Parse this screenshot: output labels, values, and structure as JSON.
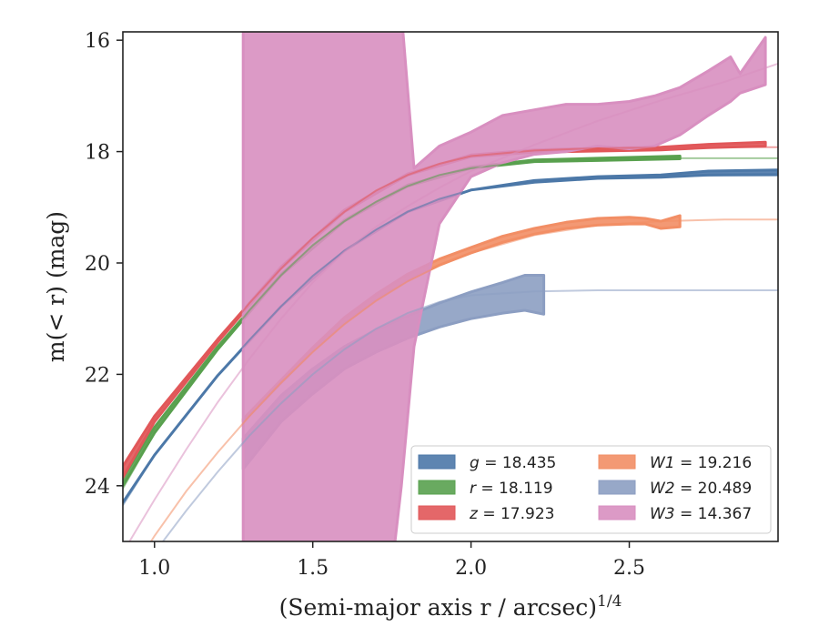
{
  "chart_data": {
    "type": "line",
    "xlabel": "(Semi-major axis r / arcsec)",
    "xlabel_superscript": "1/4",
    "ylabel": "m(< r) (mag)",
    "xlim": [
      0.9,
      2.97
    ],
    "ylim": [
      25.0,
      15.85
    ],
    "y_inverted": true,
    "x_ticks": [
      1.0,
      1.5,
      2.0,
      2.5
    ],
    "x_tick_labels": [
      "1.0",
      "1.5",
      "2.0",
      "2.5"
    ],
    "y_ticks": [
      16,
      18,
      20,
      22,
      24
    ],
    "y_tick_labels": [
      "16",
      "18",
      "20",
      "22",
      "24"
    ],
    "grid": false,
    "legend_position": "lower-right",
    "legend_columns": 2,
    "series": [
      {
        "name": "g = 18.435",
        "band": "g",
        "value": "18.435",
        "color": "#4C78A8",
        "model": [
          [
            0.9,
            24.35
          ],
          [
            1.0,
            23.45
          ],
          [
            1.1,
            22.72
          ],
          [
            1.2,
            22.02
          ],
          [
            1.3,
            21.38
          ],
          [
            1.4,
            20.78
          ],
          [
            1.5,
            20.23
          ],
          [
            1.6,
            19.78
          ],
          [
            1.7,
            19.4
          ],
          [
            1.8,
            19.08
          ],
          [
            1.9,
            18.85
          ],
          [
            2.0,
            18.69
          ],
          [
            2.2,
            18.54
          ],
          [
            2.4,
            18.47
          ],
          [
            2.6,
            18.44
          ],
          [
            2.8,
            18.43
          ],
          [
            2.97,
            18.43
          ]
        ],
        "band_data": [
          [
            0.9,
            24.3,
            24.3
          ],
          [
            1.0,
            23.45,
            23.45
          ],
          [
            1.2,
            22.02,
            22.02
          ],
          [
            1.4,
            20.78,
            20.78
          ],
          [
            1.6,
            19.78,
            19.78
          ],
          [
            1.8,
            19.08,
            19.08
          ],
          [
            2.0,
            18.69,
            18.69
          ],
          [
            2.2,
            18.55,
            18.52
          ],
          [
            2.4,
            18.48,
            18.45
          ],
          [
            2.6,
            18.46,
            18.42
          ],
          [
            2.75,
            18.42,
            18.35
          ],
          [
            2.97,
            18.41,
            18.33
          ]
        ]
      },
      {
        "name": "r = 18.119",
        "band": "r",
        "value": "18.119",
        "color": "#59A14F",
        "model": [
          [
            0.9,
            24.05
          ],
          [
            1.0,
            23.05
          ],
          [
            1.1,
            22.3
          ],
          [
            1.2,
            21.55
          ],
          [
            1.3,
            20.85
          ],
          [
            1.4,
            20.22
          ],
          [
            1.5,
            19.68
          ],
          [
            1.6,
            19.25
          ],
          [
            1.7,
            18.9
          ],
          [
            1.8,
            18.62
          ],
          [
            1.9,
            18.42
          ],
          [
            2.0,
            18.3
          ],
          [
            2.2,
            18.17
          ],
          [
            2.4,
            18.13
          ],
          [
            2.6,
            18.12
          ],
          [
            2.8,
            18.12
          ],
          [
            2.97,
            18.12
          ]
        ],
        "band_data": [
          [
            0.9,
            24.0,
            23.85
          ],
          [
            1.0,
            23.05,
            22.95
          ],
          [
            1.2,
            21.55,
            21.5
          ],
          [
            1.4,
            20.22,
            20.2
          ],
          [
            1.6,
            19.25,
            19.23
          ],
          [
            1.8,
            18.62,
            18.6
          ],
          [
            2.0,
            18.3,
            18.28
          ],
          [
            2.2,
            18.18,
            18.15
          ],
          [
            2.4,
            18.16,
            18.12
          ],
          [
            2.66,
            18.13,
            18.08
          ]
        ]
      },
      {
        "name": "z = 17.923",
        "band": "z",
        "value": "17.923",
        "color": "#E15759",
        "model": [
          [
            0.9,
            23.85
          ],
          [
            1.0,
            22.85
          ],
          [
            1.1,
            22.12
          ],
          [
            1.2,
            21.42
          ],
          [
            1.3,
            20.72
          ],
          [
            1.4,
            20.1
          ],
          [
            1.5,
            19.55
          ],
          [
            1.6,
            19.08
          ],
          [
            1.7,
            18.7
          ],
          [
            1.8,
            18.42
          ],
          [
            1.9,
            18.22
          ],
          [
            2.0,
            18.08
          ],
          [
            2.2,
            17.98
          ],
          [
            2.4,
            17.94
          ],
          [
            2.6,
            17.93
          ],
          [
            2.8,
            17.92
          ],
          [
            2.97,
            17.92
          ]
        ],
        "band_data": [
          [
            0.9,
            23.85,
            23.65
          ],
          [
            1.0,
            22.85,
            22.75
          ],
          [
            1.2,
            21.42,
            21.37
          ],
          [
            1.4,
            20.1,
            20.07
          ],
          [
            1.6,
            19.08,
            19.05
          ],
          [
            1.8,
            18.42,
            18.4
          ],
          [
            2.0,
            18.09,
            18.06
          ],
          [
            2.2,
            18.01,
            17.97
          ],
          [
            2.4,
            17.99,
            17.94
          ],
          [
            2.6,
            17.97,
            17.92
          ],
          [
            2.75,
            17.93,
            17.87
          ],
          [
            2.93,
            17.9,
            17.83
          ]
        ]
      },
      {
        "name": "W1 = 19.216",
        "band": "W1",
        "value": "19.216",
        "color": "#F28E65",
        "model": [
          [
            0.9,
            25.8
          ],
          [
            1.0,
            24.9
          ],
          [
            1.1,
            24.1
          ],
          [
            1.2,
            23.4
          ],
          [
            1.3,
            22.75
          ],
          [
            1.4,
            22.15
          ],
          [
            1.5,
            21.6
          ],
          [
            1.6,
            21.1
          ],
          [
            1.7,
            20.68
          ],
          [
            1.8,
            20.33
          ],
          [
            1.9,
            20.05
          ],
          [
            2.0,
            19.82
          ],
          [
            2.2,
            19.5
          ],
          [
            2.4,
            19.32
          ],
          [
            2.6,
            19.25
          ],
          [
            2.8,
            19.22
          ],
          [
            2.97,
            19.22
          ]
        ],
        "band_data": [
          [
            1.28,
            22.85,
            22.8
          ],
          [
            1.4,
            22.15,
            22.1
          ],
          [
            1.5,
            21.58,
            21.52
          ],
          [
            1.6,
            21.08,
            20.98
          ],
          [
            1.7,
            20.66,
            20.56
          ],
          [
            1.8,
            20.31,
            20.2
          ],
          [
            1.9,
            20.04,
            19.93
          ],
          [
            2.0,
            19.82,
            19.72
          ],
          [
            2.1,
            19.63,
            19.52
          ],
          [
            2.2,
            19.48,
            19.38
          ],
          [
            2.3,
            19.38,
            19.27
          ],
          [
            2.4,
            19.32,
            19.2
          ],
          [
            2.5,
            19.3,
            19.18
          ],
          [
            2.55,
            19.3,
            19.2
          ],
          [
            2.6,
            19.38,
            19.25
          ],
          [
            2.66,
            19.35,
            19.15
          ]
        ]
      },
      {
        "name": "W2 = 20.489",
        "band": "W2",
        "value": "20.489",
        "color": "#8C9EC2",
        "model": [
          [
            0.9,
            26.2
          ],
          [
            1.0,
            25.2
          ],
          [
            1.1,
            24.45
          ],
          [
            1.2,
            23.75
          ],
          [
            1.3,
            23.1
          ],
          [
            1.4,
            22.52
          ],
          [
            1.5,
            22.0
          ],
          [
            1.6,
            21.55
          ],
          [
            1.7,
            21.18
          ],
          [
            1.8,
            20.9
          ],
          [
            1.9,
            20.7
          ],
          [
            2.0,
            20.58
          ],
          [
            2.2,
            20.51
          ],
          [
            2.4,
            20.49
          ],
          [
            2.6,
            20.49
          ],
          [
            2.8,
            20.49
          ],
          [
            2.97,
            20.49
          ]
        ],
        "band_data": [
          [
            1.28,
            23.15,
            23.7
          ],
          [
            1.4,
            22.38,
            22.85
          ],
          [
            1.5,
            21.9,
            22.35
          ],
          [
            1.6,
            21.5,
            21.9
          ],
          [
            1.7,
            21.2,
            21.6
          ],
          [
            1.8,
            20.95,
            21.35
          ],
          [
            1.9,
            20.72,
            21.15
          ],
          [
            2.0,
            20.52,
            21.0
          ],
          [
            2.1,
            20.35,
            20.9
          ],
          [
            2.17,
            20.22,
            20.85
          ],
          [
            2.23,
            20.22,
            20.92
          ]
        ]
      },
      {
        "name": "W3 = 14.367",
        "band": "W3",
        "value": "14.367",
        "color": "#D88FC0",
        "model": [
          [
            0.9,
            25.2
          ],
          [
            1.0,
            24.25
          ],
          [
            1.1,
            23.35
          ],
          [
            1.2,
            22.5
          ],
          [
            1.3,
            21.72
          ],
          [
            1.4,
            21.0
          ],
          [
            1.5,
            20.35
          ],
          [
            1.6,
            19.8
          ],
          [
            1.7,
            19.35
          ],
          [
            1.8,
            18.98
          ],
          [
            1.9,
            18.65
          ],
          [
            2.0,
            18.35
          ],
          [
            2.2,
            17.88
          ],
          [
            2.4,
            17.45
          ],
          [
            2.6,
            17.08
          ],
          [
            2.8,
            16.75
          ],
          [
            2.97,
            16.42
          ]
        ],
        "band_data": [
          [
            1.28,
            15.0,
            26.0
          ],
          [
            1.76,
            15.0,
            25.0
          ],
          [
            1.78,
            15.5,
            24.0
          ],
          [
            1.82,
            18.3,
            21.5
          ],
          [
            1.9,
            17.9,
            19.3
          ],
          [
            2.0,
            17.65,
            18.45
          ],
          [
            2.1,
            17.35,
            18.2
          ],
          [
            2.2,
            17.25,
            18.05
          ],
          [
            2.3,
            17.15,
            18.0
          ],
          [
            2.4,
            17.15,
            17.9
          ],
          [
            2.5,
            17.1,
            17.95
          ],
          [
            2.58,
            17.0,
            17.9
          ],
          [
            2.66,
            16.85,
            17.7
          ],
          [
            2.75,
            16.55,
            17.35
          ],
          [
            2.82,
            16.3,
            17.1
          ],
          [
            2.85,
            16.6,
            16.95
          ],
          [
            2.93,
            15.95,
            16.8
          ]
        ]
      }
    ]
  }
}
